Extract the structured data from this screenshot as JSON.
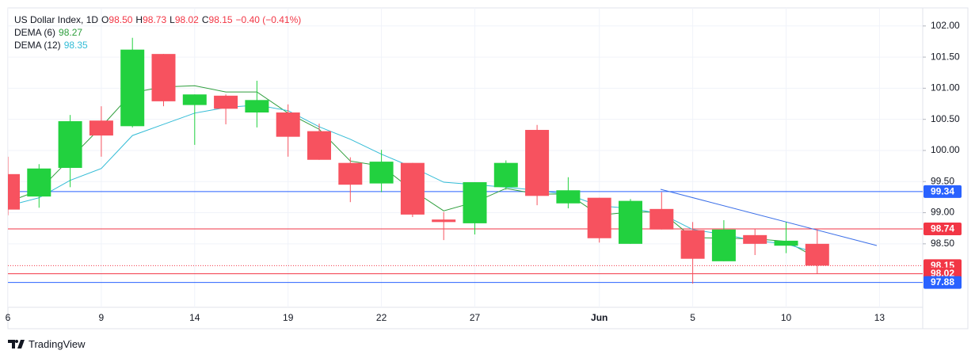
{
  "chart_data": {
    "type": "candlestick",
    "header": {
      "title": "US Dollar Index, 1D",
      "ohlc": [
        {
          "letter": "O",
          "value": "98.50"
        },
        {
          "letter": "H",
          "value": "98.73"
        },
        {
          "letter": "L",
          "value": "98.02"
        },
        {
          "letter": "C",
          "value": "98.15"
        }
      ],
      "change": "−0.40 (−0.41%)"
    },
    "categories": [
      "6",
      null,
      null,
      "9",
      null,
      null,
      "14",
      null,
      null,
      "19",
      null,
      null,
      "22",
      null,
      null,
      "27",
      null,
      null,
      null,
      "Jun",
      null,
      null,
      "5",
      null,
      null,
      "10",
      null,
      null,
      "13"
    ],
    "open": [
      99.62,
      99.26,
      99.72,
      100.48,
      100.39,
      101.55,
      100.73,
      100.88,
      100.61,
      100.61,
      100.31,
      99.8,
      99.47,
      99.8,
      98.89,
      98.83,
      99.41,
      100.33,
      99.15,
      99.24,
      98.5,
      99.06,
      98.72,
      98.22,
      98.64,
      98.47,
      98.5,
      null,
      null
    ],
    "high": [
      99.9,
      99.78,
      100.57,
      100.71,
      101.81,
      101.55,
      100.9,
      100.9,
      101.12,
      100.74,
      100.43,
      99.89,
      100.01,
      99.8,
      99.01,
      99.49,
      99.84,
      100.41,
      99.57,
      99.24,
      99.22,
      99.33,
      98.85,
      98.88,
      98.74,
      98.85,
      98.73,
      null,
      null
    ],
    "low": [
      98.96,
      99.08,
      99.41,
      99.9,
      100.37,
      100.71,
      100.09,
      100.42,
      100.37,
      99.9,
      99.85,
      99.17,
      99.33,
      98.93,
      98.56,
      98.65,
      99.37,
      99.12,
      99.07,
      98.52,
      98.5,
      98.73,
      97.86,
      98.22,
      98.32,
      98.35,
      98.02,
      null,
      null
    ],
    "close": [
      99.05,
      99.71,
      100.47,
      100.24,
      101.62,
      100.79,
      100.9,
      100.67,
      100.81,
      100.22,
      99.85,
      99.45,
      99.82,
      98.97,
      98.85,
      99.49,
      99.8,
      99.27,
      99.36,
      98.59,
      99.19,
      98.73,
      98.26,
      98.73,
      98.5,
      98.55,
      98.15,
      null,
      null
    ],
    "up_color": "#22d13f",
    "down_color": "#f7525f",
    "indicators": [
      {
        "name": "DEMA (6)",
        "color": "#2e9e3c",
        "values": [
          99.17,
          99.36,
          99.87,
          100.38,
          100.93,
          101.02,
          101.04,
          100.94,
          100.94,
          100.6,
          100.34,
          99.83,
          99.75,
          99.36,
          99.03,
          99.17,
          99.39,
          99.3,
          99.3,
          98.96,
          99.01,
          99.01,
          98.6,
          98.59,
          98.58,
          98.54,
          98.27,
          null,
          null
        ]
      },
      {
        "name": "DEMA (12)",
        "color": "#33bcd6",
        "values": [
          99.11,
          99.24,
          99.52,
          99.71,
          100.24,
          100.42,
          100.6,
          100.69,
          100.73,
          100.64,
          100.38,
          100.18,
          99.94,
          99.73,
          99.49,
          99.45,
          99.41,
          99.36,
          99.29,
          99.11,
          99.07,
          98.98,
          98.73,
          98.65,
          98.55,
          98.5,
          98.35,
          null,
          null
        ]
      }
    ],
    "levels": [
      {
        "value": 99.34,
        "color": "#2962ff",
        "style": "solid"
      },
      {
        "value": 98.74,
        "color": "#f23645",
        "style": "solid"
      },
      {
        "value": 98.15,
        "color": "#f23645",
        "style": "dotted"
      },
      {
        "value": 98.02,
        "color": "#f23645",
        "style": "solid"
      },
      {
        "value": 97.88,
        "color": "#2962ff",
        "style": "solid"
      }
    ],
    "ylim": [
      97.48,
      102.29
    ],
    "yticks": [
      {
        "value": 98.5,
        "label": "98.50"
      },
      {
        "value": 99,
        "label": "99.00"
      },
      {
        "value": 99.5,
        "label": "99.50"
      },
      {
        "value": 100,
        "label": "100.00"
      },
      {
        "value": 100.5,
        "label": "100.50"
      },
      {
        "value": 101,
        "label": "101.00"
      },
      {
        "value": 101.5,
        "label": "101.50"
      },
      {
        "value": 102,
        "label": "102.00"
      }
    ],
    "grid": true,
    "branding": "TradingView"
  }
}
